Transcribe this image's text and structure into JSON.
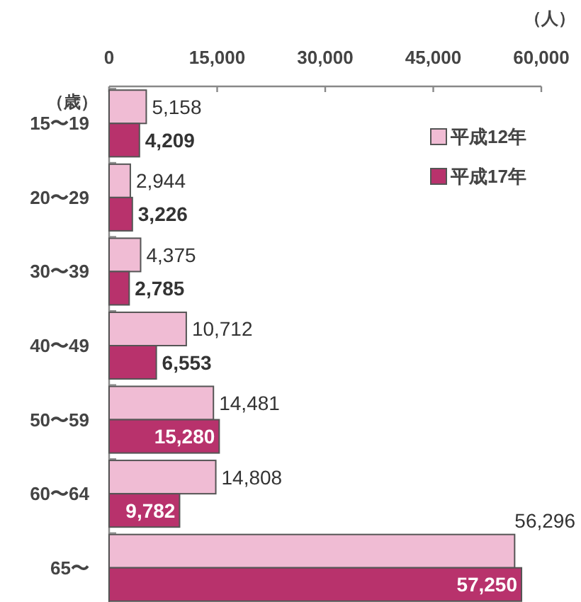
{
  "chart_data": {
    "type": "bar",
    "orientation": "horizontal",
    "xlabel": "（人）",
    "ylabel": "（歳）",
    "categories": [
      "15〜19",
      "20〜29",
      "30〜39",
      "40〜49",
      "50〜59",
      "60〜64",
      "65〜"
    ],
    "series": [
      {
        "name": "平成12年",
        "color": "#f0bcd4",
        "values": [
          5158,
          2944,
          4375,
          10712,
          14481,
          14808,
          56296
        ],
        "value_labels": [
          "5,158",
          "2,944",
          "4,375",
          "10,712",
          "14,481",
          "14,808",
          "56,296"
        ]
      },
      {
        "name": "平成17年",
        "color": "#b8326c",
        "values": [
          4209,
          3226,
          2785,
          6553,
          15280,
          9782,
          57250
        ],
        "value_labels": [
          "4,209",
          "3,226",
          "2,785",
          "6,553",
          "15,280",
          "9,782",
          "57,250"
        ]
      }
    ],
    "xlim": [
      0,
      60000
    ],
    "xticks": [
      0,
      {
        "value": 15000,
        "label": "15,000"
      },
      {
        "value": 30000,
        "label": "30,000"
      },
      {
        "value": 45000,
        "label": "45,000"
      },
      {
        "value": 60000,
        "label": "60,000"
      }
    ],
    "legend": "top right"
  }
}
